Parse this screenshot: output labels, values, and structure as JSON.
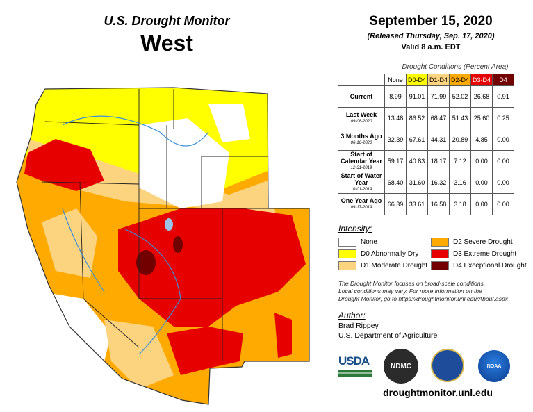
{
  "header": {
    "title": "U.S. Drought Monitor",
    "region": "West",
    "date": "September 15, 2020",
    "released": "(Released Thursday, Sep. 17, 2020)",
    "valid": "Valid 8 a.m. EDT"
  },
  "table": {
    "caption": "Drought Conditions (Percent Area)",
    "columns": [
      {
        "label": "None",
        "color": "#ffffff"
      },
      {
        "label": "D0-D4",
        "color": "#ffff00"
      },
      {
        "label": "D1-D4",
        "color": "#fcd37f"
      },
      {
        "label": "D2-D4",
        "color": "#ffaa00"
      },
      {
        "label": "D3-D4",
        "color": "#e60000"
      },
      {
        "label": "D4",
        "color": "#730000"
      }
    ],
    "rows": [
      {
        "label": "Current",
        "date": "",
        "values": [
          "8.99",
          "91.01",
          "71.99",
          "52.02",
          "26.68",
          "0.91"
        ]
      },
      {
        "label": "Last Week",
        "date": "09-08-2020",
        "values": [
          "13.48",
          "86.52",
          "68.47",
          "51.43",
          "25.60",
          "0.25"
        ]
      },
      {
        "label": "3 Months Ago",
        "date": "06-16-2020",
        "values": [
          "32.39",
          "67.61",
          "44.31",
          "20.89",
          "4.85",
          "0.00"
        ]
      },
      {
        "label": "Start of Calendar Year",
        "date": "12-31-2019",
        "values": [
          "59.17",
          "40.83",
          "18.17",
          "7.12",
          "0.00",
          "0.00"
        ]
      },
      {
        "label": "Start of Water Year",
        "date": "10-01-2019",
        "values": [
          "68.40",
          "31.60",
          "16.32",
          "3.16",
          "0.00",
          "0.00"
        ]
      },
      {
        "label": "One Year Ago",
        "date": "09-17-2019",
        "values": [
          "66.39",
          "33.61",
          "16.58",
          "3.18",
          "0.00",
          "0.00"
        ]
      }
    ]
  },
  "legend": {
    "title": "Intensity:",
    "items": [
      {
        "label": "None",
        "color": "#ffffff"
      },
      {
        "label": "D0 Abnormally Dry",
        "color": "#ffff00"
      },
      {
        "label": "D1 Moderate Drought",
        "color": "#fcd37f"
      },
      {
        "label": "D2 Severe Drought",
        "color": "#ffaa00"
      },
      {
        "label": "D3 Extreme Drought",
        "color": "#e60000"
      },
      {
        "label": "D4 Exceptional Drought",
        "color": "#730000"
      }
    ]
  },
  "note": [
    "The Drought Monitor focuses on broad-scale conditions.",
    "Local conditions may vary. For more information on the",
    "Drought Monitor, go to https://droughtmonitor.unl.edu/About.aspx"
  ],
  "author": {
    "title": "Author:",
    "name": "Brad Rippey",
    "org": "U.S. Department of Agriculture"
  },
  "logos": {
    "usda": "USDA",
    "ndmc": "NDMC",
    "noaa": "NOAA"
  },
  "url": "droughtmonitor.unl.edu"
}
